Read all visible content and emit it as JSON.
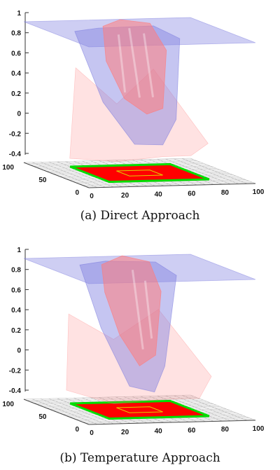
{
  "chart_data": [
    {
      "type": "surface3d",
      "caption": "(a) Direct Approach",
      "z_ticks": [
        "1",
        "0.8",
        "0.6",
        "0.4",
        "0.2",
        "0",
        "-0.2",
        "-0.4"
      ],
      "x_ticks": [
        "0",
        "20",
        "40",
        "60",
        "80",
        "100"
      ],
      "y_ticks": [
        "0",
        "50",
        "100"
      ],
      "zlim": [
        -0.4,
        1
      ],
      "xlim": [
        0,
        100
      ],
      "ylim": [
        0,
        100
      ],
      "series": [
        {
          "color": "#7f7fe0"
        },
        {
          "color": "#ff7b7b"
        }
      ],
      "floor": {
        "outer_region": [
          20,
          80
        ],
        "inner_region": [
          40,
          60
        ],
        "fill": "#ff0000",
        "edge": "#00dd00",
        "inner_edge": "#e0d000"
      }
    },
    {
      "type": "surface3d",
      "caption": "(b) Temperature Approach",
      "z_ticks": [
        "1",
        "0.8",
        "0.6",
        "0.4",
        "0.2",
        "0",
        "-0.2",
        "-0.4"
      ],
      "x_ticks": [
        "0",
        "20",
        "40",
        "60",
        "80",
        "100"
      ],
      "y_ticks": [
        "0",
        "50",
        "100"
      ],
      "zlim": [
        -0.4,
        1
      ],
      "xlim": [
        0,
        100
      ],
      "ylim": [
        0,
        100
      ],
      "series": [
        {
          "color": "#7f7fe0"
        },
        {
          "color": "#ff7b7b"
        }
      ],
      "floor": {
        "outer_region": [
          20,
          80
        ],
        "inner_region": [
          40,
          60
        ],
        "fill": "#ff0000",
        "edge": "#00dd00",
        "inner_edge": "#e0d000"
      }
    }
  ]
}
